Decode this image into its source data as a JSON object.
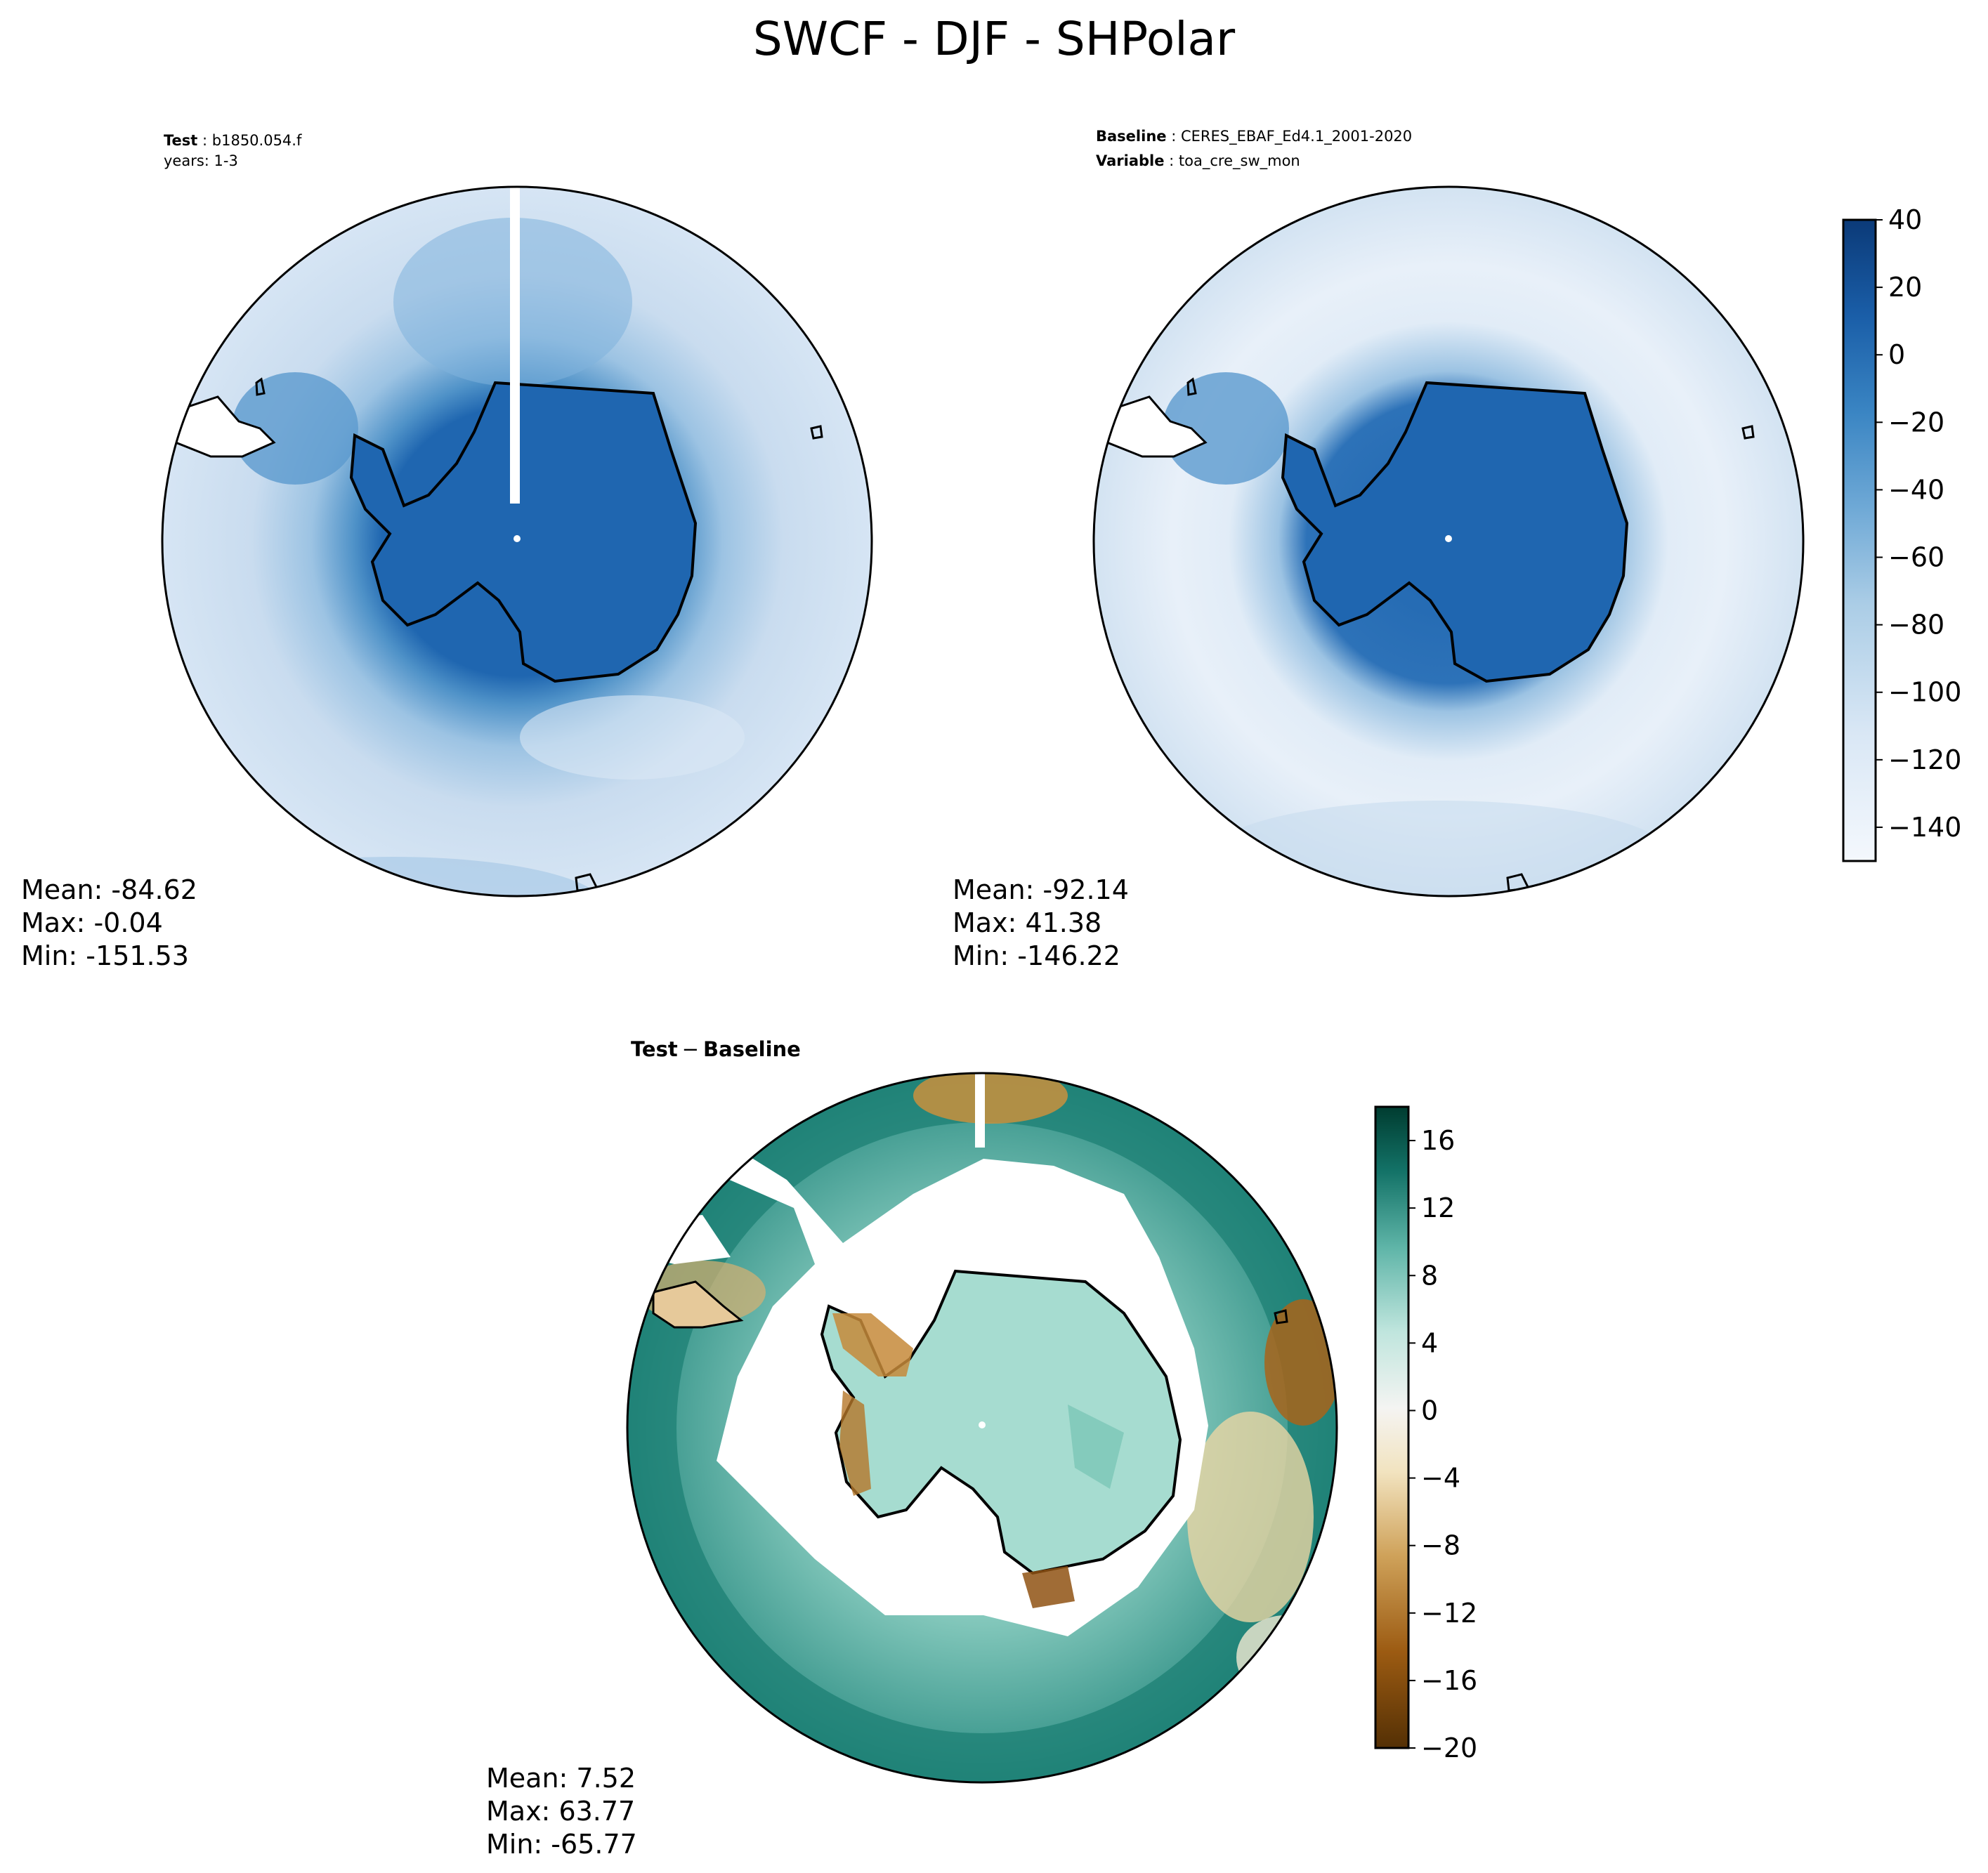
{
  "figure": {
    "title": "SWCF - DJF - SHPolar"
  },
  "panels": {
    "test": {
      "header": [
        {
          "key": "Test",
          "value": "b1850.054.f"
        },
        {
          "key": "",
          "value": "years: 1-3"
        }
      ],
      "stats": {
        "mean": "Mean: -84.62",
        "max": "Max: -0.04",
        "min": "Min: -151.53"
      }
    },
    "baseline": {
      "header": [
        {
          "key": "Baseline",
          "value": "CERES_EBAF_Ed4.1_2001-2020"
        },
        {
          "key": "Variable",
          "value": "toa_cre_sw_mon"
        }
      ],
      "stats": {
        "mean": "Mean: -92.14",
        "max": "Max: 41.38",
        "min": "Min: -146.22"
      }
    },
    "diff": {
      "header_key": "Test",
      "header_sep": "−",
      "header_value": "Baseline",
      "stats": {
        "mean": "Mean:  7.52",
        "max": "Max: 63.77",
        "min": "Min: -65.77"
      }
    }
  },
  "chart_data": [
    {
      "type": "heatmap",
      "name": "test",
      "projection": "south-polar-stereographic",
      "colormap": "Blues",
      "colors": {
        "land": "#1f66b0",
        "coast_ring": "#4f92c8",
        "ocean_mid": "#b9d4ea",
        "ocean_outer": "#dbe8f5"
      }
    },
    {
      "type": "heatmap",
      "name": "baseline",
      "projection": "south-polar-stereographic",
      "colormap": "Blues",
      "colorbar": {
        "range": [
          -150,
          40
        ],
        "ticks": [
          "40",
          "20",
          "0",
          "−20",
          "−40",
          "−60",
          "−80",
          "−100",
          "−120",
          "−140"
        ]
      }
    },
    {
      "type": "heatmap",
      "name": "diff",
      "projection": "south-polar-stereographic",
      "colormap": "BrBG",
      "colorbar": {
        "range": [
          -20,
          18
        ],
        "ticks": [
          "16",
          "12",
          "8",
          "4",
          "0",
          "−4",
          "−8",
          "−12",
          "−16",
          "−20"
        ]
      }
    }
  ]
}
